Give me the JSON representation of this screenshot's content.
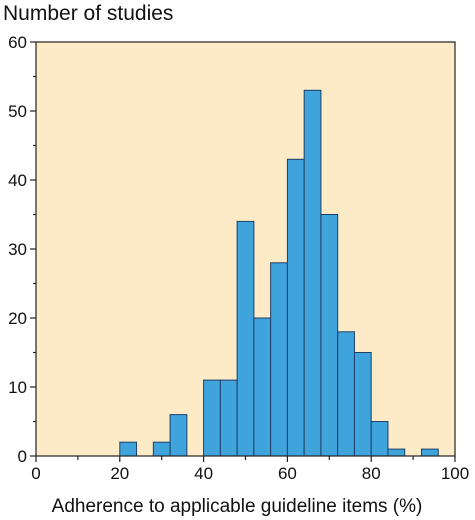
{
  "chart_data": {
    "type": "bar",
    "title": "Number of studies",
    "xlabel": "Adherence to applicable guideline items (%)",
    "ylabel": "",
    "xlim": [
      0,
      100
    ],
    "ylim": [
      0,
      60
    ],
    "x_ticks": [
      0,
      20,
      40,
      60,
      80,
      100
    ],
    "y_ticks": [
      0,
      10,
      20,
      30,
      40,
      50,
      60
    ],
    "bin_width": 4,
    "bins": [
      {
        "start": 20,
        "count": 2
      },
      {
        "start": 28,
        "count": 2
      },
      {
        "start": 32,
        "count": 6
      },
      {
        "start": 40,
        "count": 11
      },
      {
        "start": 44,
        "count": 11
      },
      {
        "start": 48,
        "count": 34
      },
      {
        "start": 52,
        "count": 20
      },
      {
        "start": 56,
        "count": 28
      },
      {
        "start": 60,
        "count": 43
      },
      {
        "start": 64,
        "count": 53
      },
      {
        "start": 68,
        "count": 35
      },
      {
        "start": 72,
        "count": 18
      },
      {
        "start": 76,
        "count": 15
      },
      {
        "start": 80,
        "count": 5
      },
      {
        "start": 84,
        "count": 1
      },
      {
        "start": 92,
        "count": 1
      }
    ],
    "grid": false,
    "colors": {
      "plot_background": "#fdebc8",
      "bar_fill": "#3fa4dc",
      "bar_stroke": "#1f3f66",
      "axis": "#222222"
    }
  }
}
